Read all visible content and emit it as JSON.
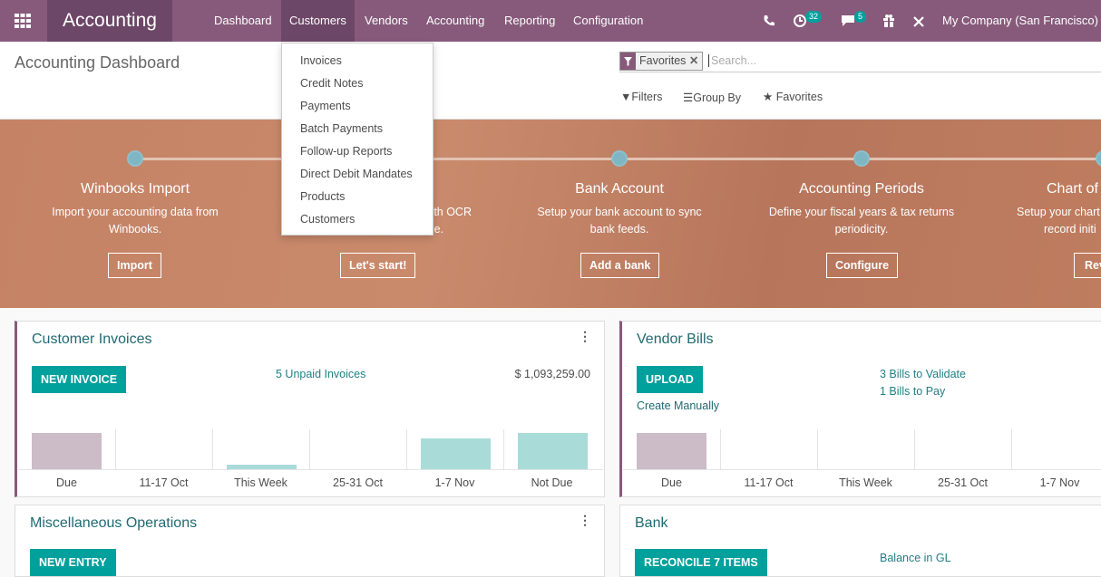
{
  "navbar": {
    "brand": "Accounting",
    "menu": [
      "Dashboard",
      "Customers",
      "Vendors",
      "Accounting",
      "Reporting",
      "Configuration"
    ],
    "activity_badge": "32",
    "message_badge": "5",
    "company": "My Company (San Francisco)"
  },
  "dropdown": {
    "items": [
      "Invoices",
      "Credit Notes",
      "Payments",
      "Batch Payments",
      "Follow-up Reports",
      "Direct Debit Mandates",
      "Products",
      "Customers"
    ]
  },
  "control_panel": {
    "breadcrumb": "Accounting Dashboard",
    "search": {
      "facet": "Favorites",
      "placeholder": "Search..."
    },
    "buttons": [
      "Filters",
      "Group By",
      "Favorites"
    ]
  },
  "banner": {
    "steps": [
      {
        "title": "Winbooks Import",
        "description": [
          "Import your accounting data from",
          "Winbooks."
        ],
        "button": "Import"
      },
      {
        "description": [
          "th OCR",
          "e."
        ],
        "button": "Let's start!"
      },
      {
        "title": "Bank Account",
        "description": [
          "Setup your bank account to sync",
          "bank feeds."
        ],
        "button": "Add a bank"
      },
      {
        "title": "Accounting Periods",
        "description": [
          "Define your fiscal years & tax returns",
          "periodicity."
        ],
        "button": "Configure"
      },
      {
        "title": "Chart of",
        "description": [
          "Setup your chart",
          "record initi"
        ],
        "button": "Rev"
      }
    ]
  },
  "cards": [
    {
      "title": "Customer Invoices",
      "button": "NEW INVOICE",
      "links": [
        "5 Unpaid Invoices"
      ],
      "amount": "$ 1,093,259.00",
      "chart": {
        "categories": [
          "Due",
          "11-17 Oct",
          "This Week",
          "25-31 Oct",
          "1-7 Nov",
          "Not Due"
        ],
        "values": [
          40,
          0,
          5,
          0,
          34,
          40
        ],
        "colors": [
          "#cbbcc8",
          "#a9dcd9",
          "#a9dcd9",
          "#a9dcd9",
          "#a9dcd9",
          "#a9dcd9"
        ]
      }
    },
    {
      "title": "Vendor Bills",
      "button": "UPLOAD",
      "secondary": "Create Manually",
      "links": [
        "3 Bills to Validate",
        "1 Bills to Pay"
      ],
      "chart": {
        "categories": [
          "Due",
          "11-17 Oct",
          "This Week",
          "25-31 Oct",
          "1-7 Nov"
        ],
        "values": [
          40,
          0,
          0,
          0,
          0
        ],
        "colors": [
          "#cbbcc8",
          "#a9dcd9",
          "#a9dcd9",
          "#a9dcd9",
          "#a9dcd9"
        ]
      }
    },
    {
      "title": "Miscellaneous Operations",
      "button": "NEW ENTRY"
    },
    {
      "title": "Bank",
      "button": "RECONCILE 7 ITEMS",
      "links": [
        "Balance in GL"
      ]
    }
  ]
}
